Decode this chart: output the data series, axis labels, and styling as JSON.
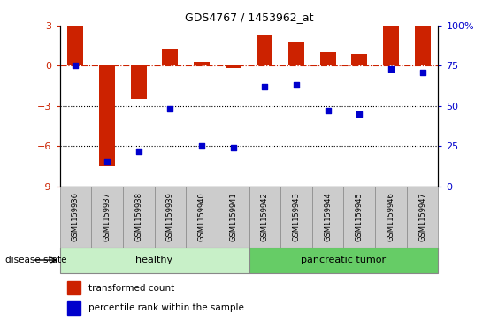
{
  "title": "GDS4767 / 1453962_at",
  "samples": [
    "GSM1159936",
    "GSM1159937",
    "GSM1159938",
    "GSM1159939",
    "GSM1159940",
    "GSM1159941",
    "GSM1159942",
    "GSM1159943",
    "GSM1159944",
    "GSM1159945",
    "GSM1159946",
    "GSM1159947"
  ],
  "bar_values": [
    3.0,
    -7.5,
    -2.5,
    1.3,
    0.3,
    -0.2,
    2.3,
    1.8,
    1.0,
    0.9,
    3.0,
    3.0
  ],
  "dot_values_raw": [
    75,
    15,
    22,
    48,
    25,
    24,
    62,
    63,
    47,
    45,
    73,
    71
  ],
  "healthy_count": 6,
  "tumor_count": 6,
  "healthy_color": "#c8f0c8",
  "tumor_color": "#66cc66",
  "bar_color": "#cc2200",
  "dot_color": "#0000cc",
  "ylim_left": [
    -9,
    3
  ],
  "ylim_right": [
    0,
    100
  ],
  "yticks_left": [
    -9,
    -6,
    -3,
    0,
    3
  ],
  "yticks_right": [
    0,
    25,
    50,
    75,
    100
  ],
  "dotted_lines": [
    -3,
    -6
  ],
  "bar_width": 0.5,
  "background_color": "#ffffff",
  "legend_items": [
    "transformed count",
    "percentile rank within the sample"
  ],
  "disease_label": "disease state",
  "healthy_label": "healthy",
  "tumor_label": "pancreatic tumor"
}
